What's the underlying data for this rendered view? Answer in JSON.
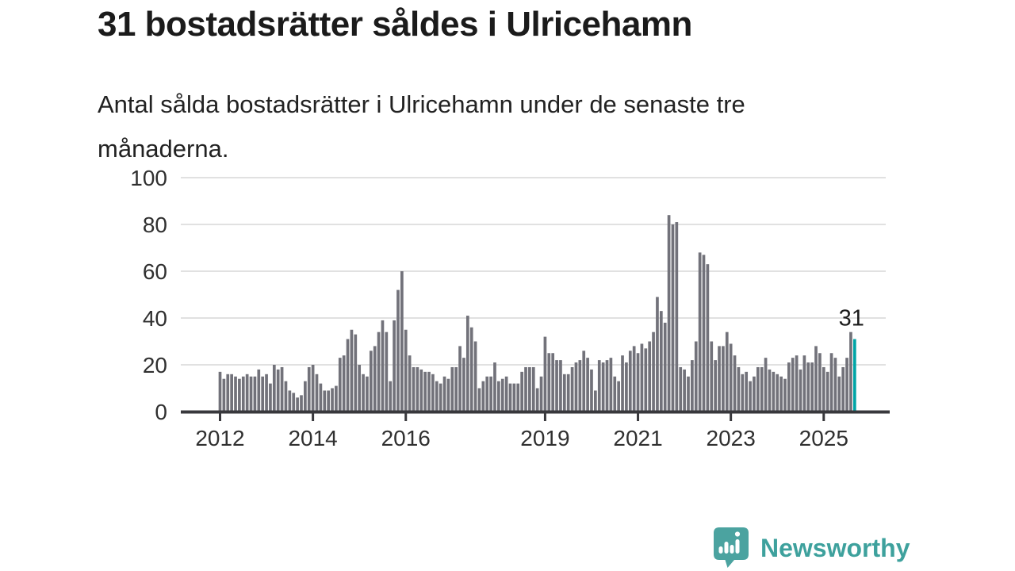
{
  "header": {
    "title": "31 bostadsrätter såldes i Ulricehamn",
    "subtitle": "Antal sålda bostadsrätter i Ulricehamn under de senaste tre månaderna."
  },
  "chart_data": {
    "type": "bar",
    "title": "31 bostadsrätter såldes i Ulricehamn",
    "x_start_month": "2012-01",
    "x_end_month": "2025-09",
    "values": [
      17,
      14,
      16,
      16,
      15,
      14,
      15,
      16,
      15,
      15,
      18,
      15,
      16,
      12,
      20,
      18,
      19,
      13,
      9,
      8,
      6,
      7,
      13,
      19,
      20,
      16,
      12,
      9,
      9,
      10,
      11,
      23,
      24,
      31,
      35,
      33,
      20,
      16,
      15,
      26,
      28,
      34,
      39,
      34,
      13,
      39,
      52,
      60,
      35,
      24,
      19,
      19,
      18,
      17,
      17,
      16,
      13,
      12,
      15,
      14,
      19,
      19,
      28,
      23,
      41,
      36,
      30,
      10,
      13,
      15,
      15,
      21,
      13,
      14,
      15,
      12,
      12,
      12,
      17,
      19,
      19,
      19,
      10,
      15,
      32,
      25,
      25,
      22,
      22,
      16,
      16,
      19,
      21,
      22,
      26,
      23,
      18,
      9,
      22,
      21,
      22,
      23,
      15,
      13,
      24,
      21,
      26,
      28,
      25,
      29,
      27,
      30,
      34,
      49,
      43,
      38,
      84,
      80,
      81,
      19,
      18,
      15,
      22,
      30,
      68,
      67,
      63,
      30,
      22,
      28,
      28,
      34,
      29,
      24,
      19,
      16,
      17,
      13,
      15,
      19,
      19,
      23,
      18,
      17,
      16,
      15,
      14,
      21,
      23,
      24,
      18,
      24,
      21,
      21,
      28,
      25,
      19,
      17,
      25,
      23,
      15,
      19,
      23,
      34,
      31
    ],
    "last_value_label": "31",
    "y_ticks": [
      0,
      20,
      40,
      60,
      80,
      100
    ],
    "ylim": [
      0,
      100
    ],
    "x_ticks": [
      {
        "label": "2012",
        "month_index": 0
      },
      {
        "label": "2014",
        "month_index": 24
      },
      {
        "label": "2016",
        "month_index": 48
      },
      {
        "label": "2019",
        "month_index": 84
      },
      {
        "label": "2021",
        "month_index": 108
      },
      {
        "label": "2023",
        "month_index": 132
      },
      {
        "label": "2025",
        "month_index": 156
      }
    ],
    "grid": true,
    "legend": "none",
    "bar_color": "#72727A",
    "highlight_color": "#00A5A6",
    "gridline_color": "#E1E1E1",
    "axis_color": "#38383C",
    "tick_label_color": "#303030"
  },
  "footer": {
    "brand": "Newsworthy",
    "brand_color": "#3EA19D"
  }
}
